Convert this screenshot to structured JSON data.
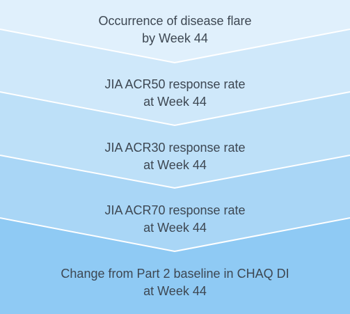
{
  "steps": [
    {
      "line1": "Occurrence of disease flare",
      "line2": "by Week 44",
      "color": "#e0f0fc"
    },
    {
      "line1": "JIA ACR50 response rate",
      "line2": "at Week 44",
      "color": "#cfe8fa"
    },
    {
      "line1": "JIA ACR30 response rate",
      "line2": "at Week 44",
      "color": "#bde0f8"
    },
    {
      "line1": "JIA ACR70 response rate",
      "line2": "at Week 44",
      "color": "#a9d6f6"
    },
    {
      "line1": "Change from Part 2 baseline in CHAQ DI",
      "line2": "at Week 44",
      "color": "#8fcaf4"
    }
  ],
  "separator_color": "#ffffff",
  "text_color": "#3d4752"
}
